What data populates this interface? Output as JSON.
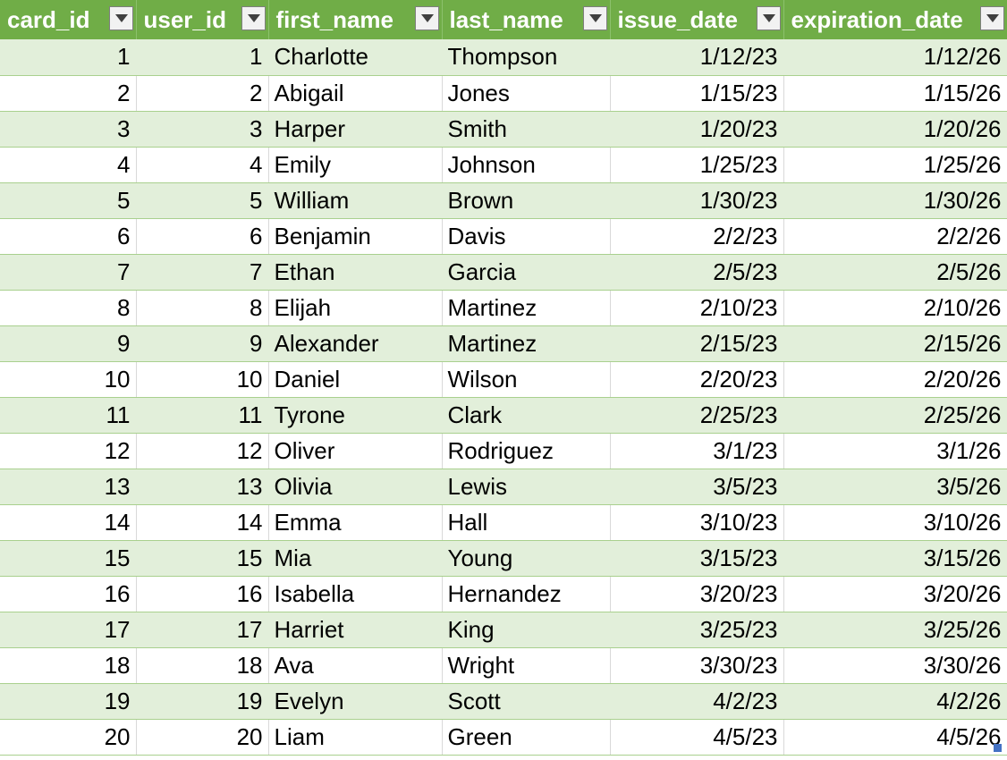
{
  "table": {
    "columns": [
      {
        "label": "card_id",
        "align": "num"
      },
      {
        "label": "user_id",
        "align": "num"
      },
      {
        "label": "first_name",
        "align": "txt"
      },
      {
        "label": "last_name",
        "align": "txt"
      },
      {
        "label": "issue_date",
        "align": "num"
      },
      {
        "label": "expiration_date",
        "align": "num"
      }
    ],
    "rows": [
      [
        "1",
        "1",
        "Charlotte",
        "Thompson",
        "1/12/23",
        "1/12/26"
      ],
      [
        "2",
        "2",
        "Abigail",
        "Jones",
        "1/15/23",
        "1/15/26"
      ],
      [
        "3",
        "3",
        "Harper",
        "Smith",
        "1/20/23",
        "1/20/26"
      ],
      [
        "4",
        "4",
        "Emily",
        "Johnson",
        "1/25/23",
        "1/25/26"
      ],
      [
        "5",
        "5",
        "William",
        "Brown",
        "1/30/23",
        "1/30/26"
      ],
      [
        "6",
        "6",
        "Benjamin",
        "Davis",
        "2/2/23",
        "2/2/26"
      ],
      [
        "7",
        "7",
        "Ethan",
        "Garcia",
        "2/5/23",
        "2/5/26"
      ],
      [
        "8",
        "8",
        "Elijah",
        "Martinez",
        "2/10/23",
        "2/10/26"
      ],
      [
        "9",
        "9",
        "Alexander",
        "Martinez",
        "2/15/23",
        "2/15/26"
      ],
      [
        "10",
        "10",
        "Daniel",
        "Wilson",
        "2/20/23",
        "2/20/26"
      ],
      [
        "11",
        "11",
        "Tyrone",
        "Clark",
        "2/25/23",
        "2/25/26"
      ],
      [
        "12",
        "12",
        "Oliver",
        "Rodriguez",
        "3/1/23",
        "3/1/26"
      ],
      [
        "13",
        "13",
        "Olivia",
        "Lewis",
        "3/5/23",
        "3/5/26"
      ],
      [
        "14",
        "14",
        "Emma",
        "Hall",
        "3/10/23",
        "3/10/26"
      ],
      [
        "15",
        "15",
        "Mia",
        "Young",
        "3/15/23",
        "3/15/26"
      ],
      [
        "16",
        "16",
        "Isabella",
        "Hernandez",
        "3/20/23",
        "3/20/26"
      ],
      [
        "17",
        "17",
        "Harriet",
        "King",
        "3/25/23",
        "3/25/26"
      ],
      [
        "18",
        "18",
        "Ava",
        "Wright",
        "3/30/23",
        "3/30/26"
      ],
      [
        "19",
        "19",
        "Evelyn",
        "Scott",
        "4/2/23",
        "4/2/26"
      ],
      [
        "20",
        "20",
        "Liam",
        "Green",
        "4/5/23",
        "4/5/26"
      ]
    ]
  },
  "icons": {
    "filter": "chevron-down-icon",
    "resize": "resize-handle-icon"
  },
  "colors": {
    "header_bg": "#70ad47",
    "header_text": "#ffffff",
    "band_row": "#e2efda",
    "plain_row": "#ffffff",
    "accent": "#4472c4"
  }
}
